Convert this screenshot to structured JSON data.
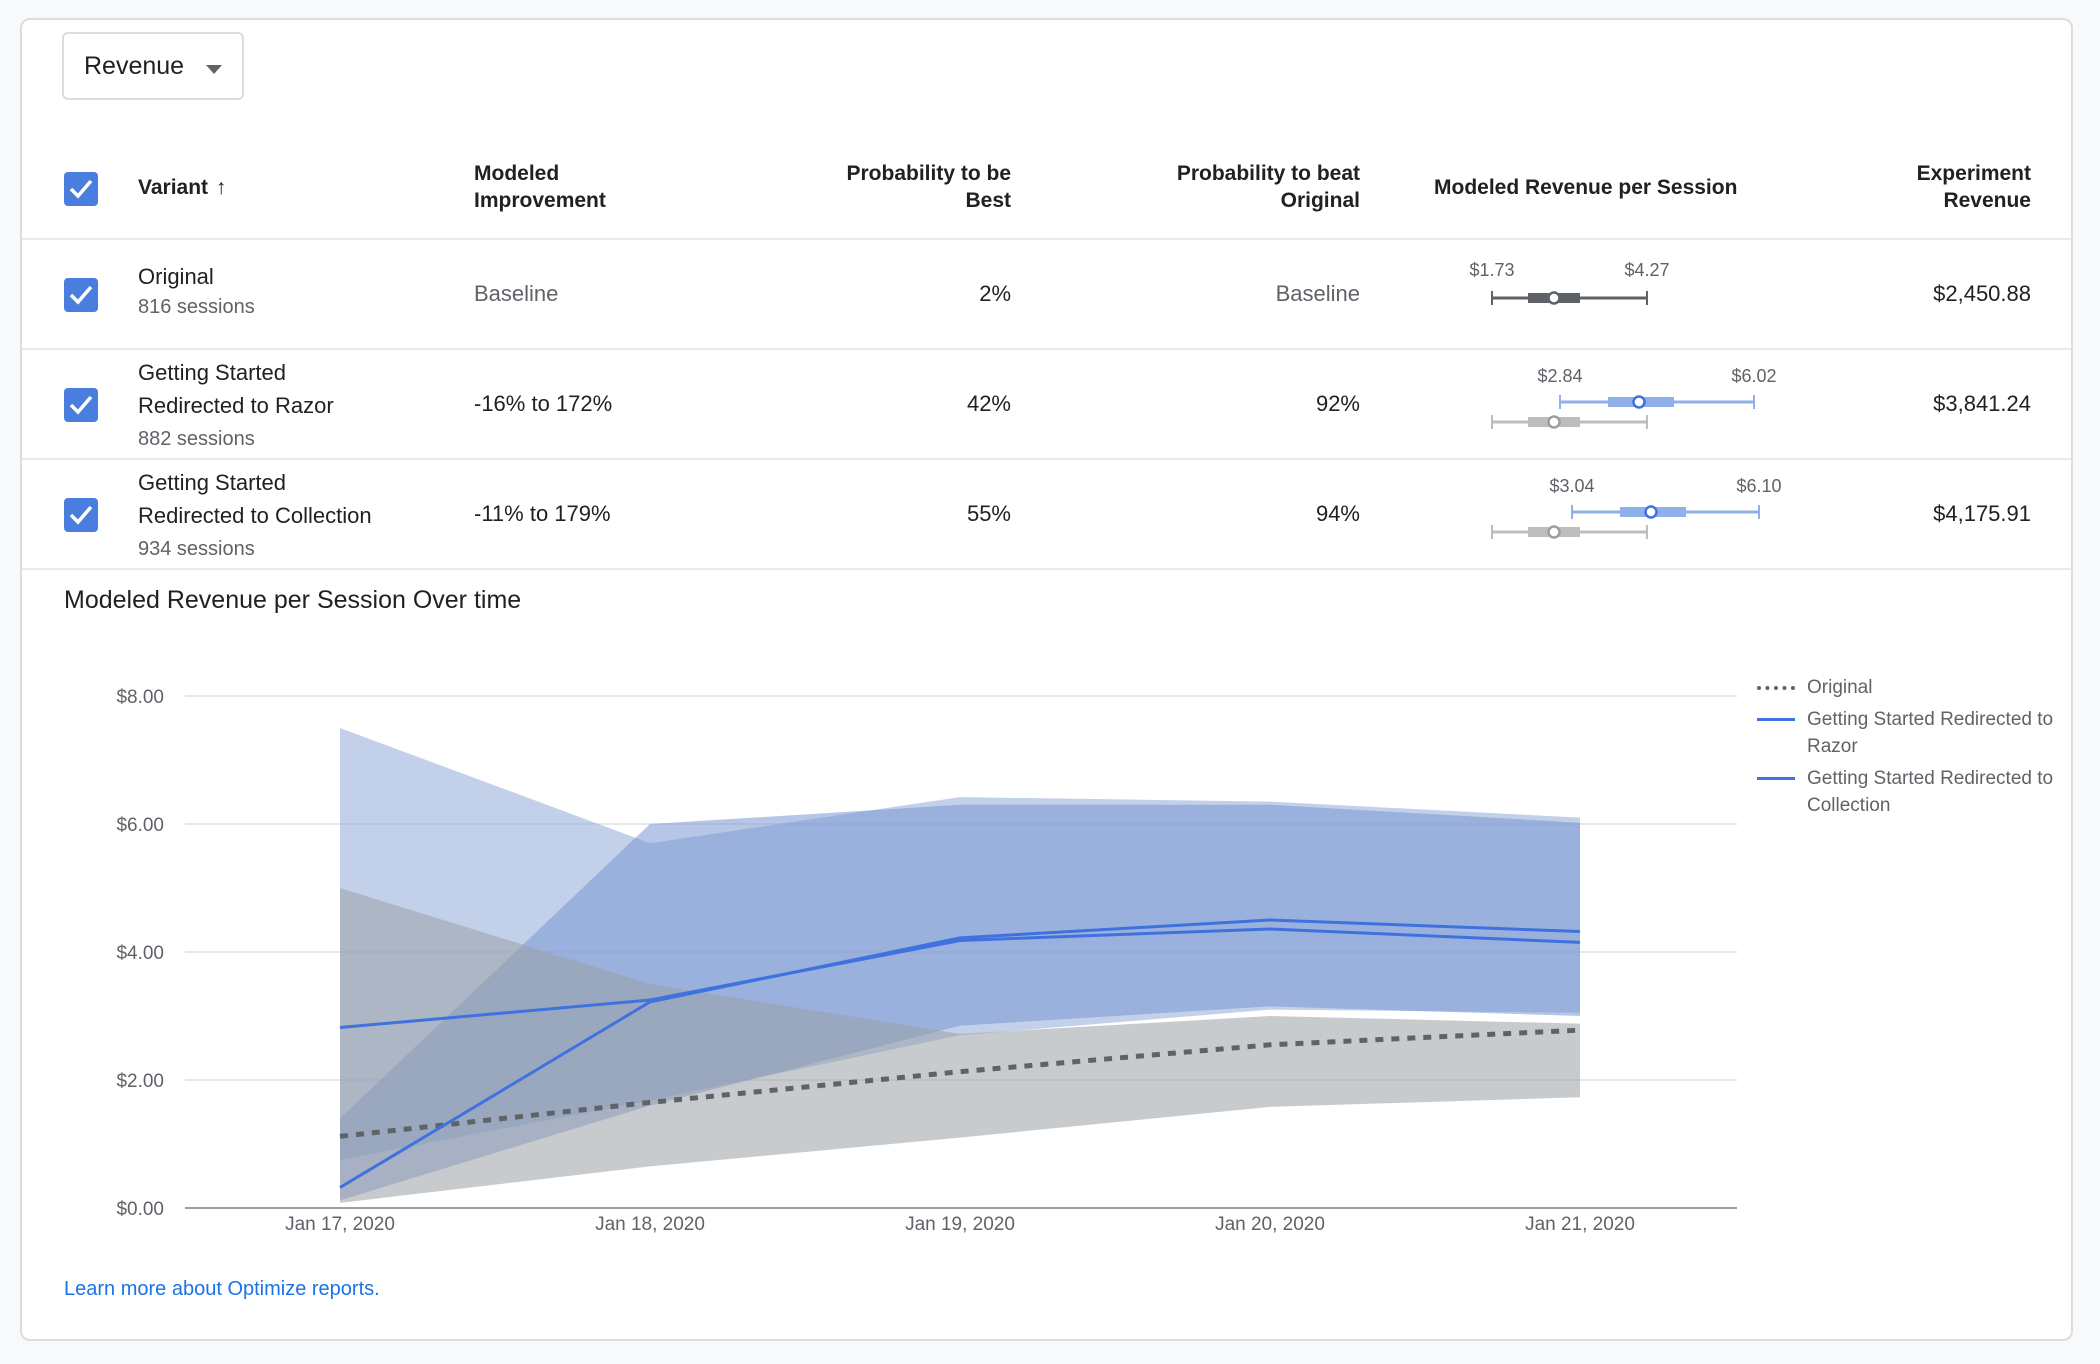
{
  "metric_selector": {
    "selected": "Revenue"
  },
  "table": {
    "headers": {
      "variant": "Variant",
      "sort_arrow": "↑",
      "modeled_improvement": [
        "Modeled",
        "Improvement"
      ],
      "prob_best": [
        "Probability to be",
        "Best"
      ],
      "prob_beat": [
        "Probability to beat",
        "Original"
      ],
      "modeled_rps": "Modeled Revenue per Session",
      "experiment_revenue": [
        "Experiment",
        "Revenue"
      ]
    },
    "rows": [
      {
        "name_lines": [
          "Original"
        ],
        "sessions": "816 sessions",
        "improvement": "Baseline",
        "prob_best": "2%",
        "prob_beat": "Baseline",
        "rps_low": "$1.73",
        "rps_high": "$4.27",
        "revenue": "$2,450.88"
      },
      {
        "name_lines": [
          "Getting Started",
          "Redirected to Razor"
        ],
        "sessions": "882 sessions",
        "improvement": "-16% to 172%",
        "prob_best": "42%",
        "prob_beat": "92%",
        "rps_low": "$2.84",
        "rps_high": "$6.02",
        "revenue": "$3,841.24"
      },
      {
        "name_lines": [
          "Getting Started",
          "Redirected to Collection"
        ],
        "sessions": "934 sessions",
        "improvement": "-11% to 179%",
        "prob_best": "55%",
        "prob_beat": "94%",
        "rps_low": "$3.04",
        "rps_high": "$6.10",
        "revenue": "$4,175.91"
      }
    ]
  },
  "chart_title": "Modeled Revenue per Session Over time",
  "chart_data": {
    "type": "line",
    "x": [
      "Jan 17, 2020",
      "Jan 18, 2020",
      "Jan 19, 2020",
      "Jan 20, 2020",
      "Jan 21, 2020"
    ],
    "y_ticks": [
      "$0.00",
      "$2.00",
      "$4.00",
      "$6.00",
      "$8.00"
    ],
    "ylim": [
      0,
      8
    ],
    "grid": true,
    "legend_position": "right",
    "series": [
      {
        "name": "Original",
        "style": "dotted",
        "color": "#5f6368",
        "values": [
          1.12,
          1.65,
          2.13,
          2.55,
          2.78
        ],
        "band_low": [
          0.08,
          0.65,
          1.1,
          1.58,
          1.73
        ],
        "band_high": [
          5.0,
          3.5,
          2.72,
          3.0,
          2.88
        ],
        "band_color": "#9aa0a6"
      },
      {
        "name": "Getting Started Redirected to Razor",
        "style": "solid",
        "color": "#3f72de",
        "values": [
          2.82,
          3.25,
          4.18,
          4.36,
          4.15
        ],
        "band_low": [
          0.75,
          1.68,
          2.7,
          3.1,
          3.05
        ],
        "band_high": [
          7.5,
          5.7,
          6.42,
          6.35,
          6.1
        ],
        "band_color": "#8fa9d9"
      },
      {
        "name": "Getting Started Redirected to Collection",
        "style": "solid",
        "color": "#3f72de",
        "values": [
          0.32,
          3.22,
          4.22,
          4.5,
          4.32
        ],
        "band_low": [
          0.12,
          1.6,
          2.85,
          3.15,
          3.0
        ],
        "band_high": [
          1.4,
          6.0,
          6.3,
          6.3,
          6.02
        ],
        "band_color": "#7a97d1"
      }
    ]
  },
  "link": {
    "learn_more": "Learn more about Optimize reports."
  },
  "colors": {
    "accent": "#4a7ede",
    "line": "#3f72de",
    "link": "#1a73e8"
  }
}
